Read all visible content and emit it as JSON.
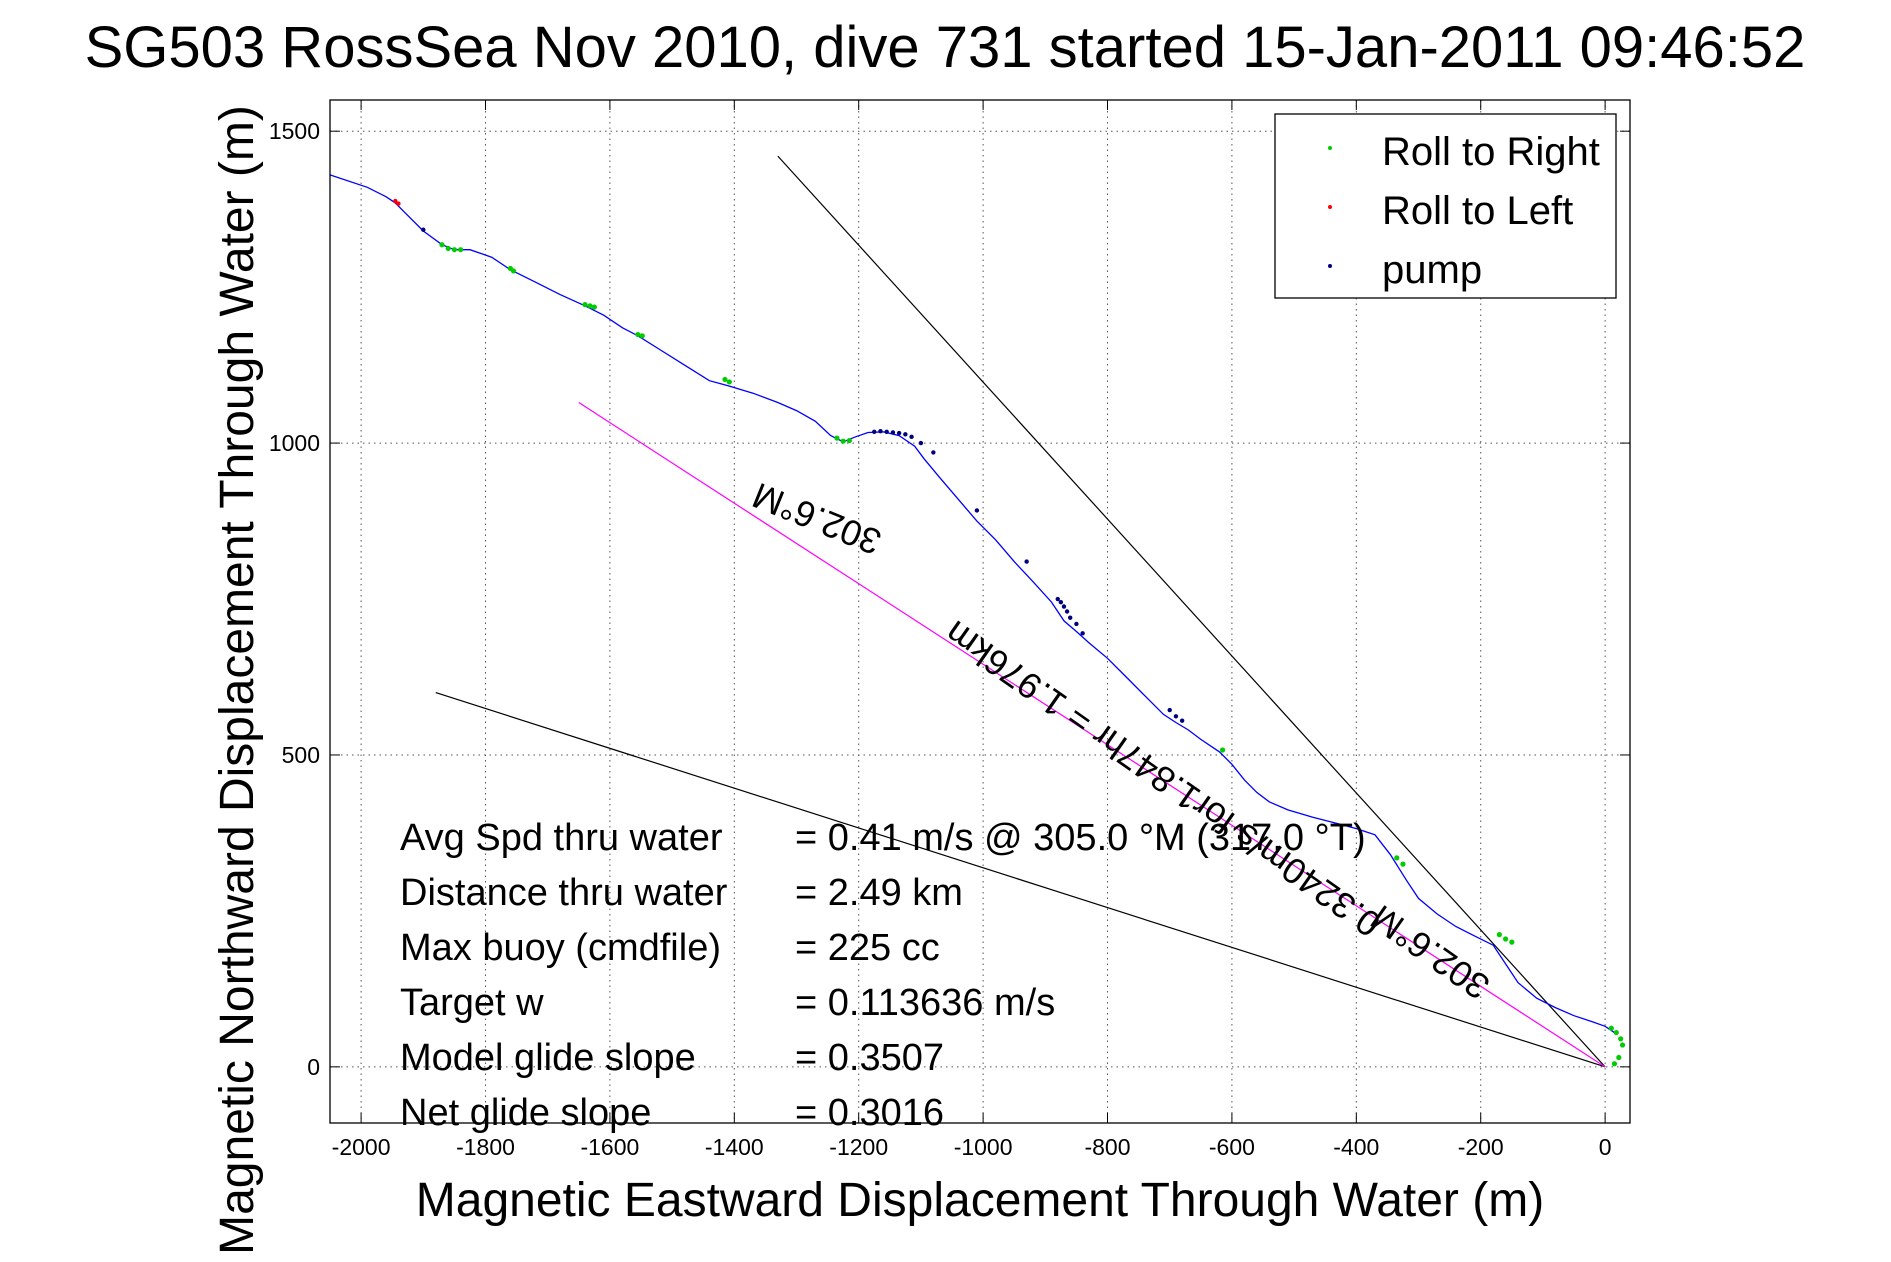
{
  "chart_data": {
    "type": "line",
    "title": "SG503 RossSea Nov 2010, dive 731 started 15-Jan-2011 09:46:52",
    "xlabel": "Magnetic Eastward Displacement Through Water (m)",
    "ylabel": "Magnetic Northward Displacement Through Water (m)",
    "xlim": [
      -2050,
      40
    ],
    "ylim": [
      -90,
      1550
    ],
    "xticks": [
      -2000,
      -1800,
      -1600,
      -1400,
      -1200,
      -1000,
      -800,
      -600,
      -400,
      -200,
      0
    ],
    "yticks": [
      0,
      500,
      1000,
      1500
    ],
    "grid": true,
    "legend_position": "top-right",
    "legend": [
      {
        "label": "Roll to Right",
        "color": "#00cc00"
      },
      {
        "label": "Roll to Left",
        "color": "#ff0000"
      },
      {
        "label": "pump",
        "color": "#000080"
      }
    ],
    "series": [
      {
        "color": "#0000ff",
        "x": [
          -2050,
          -1990,
          -1960,
          -1945,
          -1930,
          -1900,
          -1870,
          -1850,
          -1825,
          -1790,
          -1760,
          -1720,
          -1680,
          -1640,
          -1610,
          -1580,
          -1555,
          -1520,
          -1480,
          -1440,
          -1410,
          -1370,
          -1330,
          -1300,
          -1270,
          -1245,
          -1225,
          -1205,
          -1185,
          -1160,
          -1135,
          -1110,
          -1095,
          -1070,
          -1040,
          -1010,
          -980,
          -950,
          -920,
          -890,
          -870,
          -850,
          -830,
          -800,
          -770,
          -740,
          -710,
          -690,
          -670,
          -650,
          -620,
          -600,
          -580,
          -560,
          -540,
          -510,
          -470,
          -430,
          -400,
          -370,
          -345,
          -320,
          -300,
          -270,
          -240,
          -210,
          -180,
          -160,
          -140,
          -110,
          -80,
          -50,
          -20,
          0,
          15
        ],
        "y": [
          1430,
          1410,
          1395,
          1385,
          1370,
          1340,
          1318,
          1310,
          1310,
          1298,
          1278,
          1258,
          1238,
          1220,
          1205,
          1185,
          1172,
          1150,
          1125,
          1100,
          1092,
          1080,
          1065,
          1052,
          1035,
          1012,
          1002,
          1010,
          1017,
          1018,
          1012,
          995,
          975,
          945,
          910,
          875,
          845,
          810,
          778,
          745,
          715,
          698,
          680,
          655,
          625,
          595,
          565,
          552,
          540,
          525,
          505,
          485,
          460,
          440,
          425,
          412,
          400,
          390,
          382,
          372,
          340,
          300,
          270,
          245,
          225,
          210,
          195,
          165,
          135,
          110,
          95,
          82,
          72,
          65,
          55
        ]
      }
    ],
    "lines": [
      {
        "x": [
          -1330,
          0
        ],
        "y": [
          1460,
          0
        ],
        "color": "#000000"
      },
      {
        "x": [
          -1880,
          0
        ],
        "y": [
          600,
          0
        ],
        "color": "#000000"
      },
      {
        "x": [
          -1650,
          0
        ],
        "y": [
          1065,
          0
        ],
        "color": "#ff00ff"
      }
    ],
    "markers": {
      "roll_right": {
        "color": "#00cc00",
        "x": [
          -1870,
          -1860,
          -1850,
          -1840,
          -1760,
          -1755,
          -1640,
          -1632,
          -1625,
          -1555,
          -1548,
          -1415,
          -1408,
          -1235,
          -1225,
          -1215,
          -615,
          -335,
          -325,
          -170,
          -160,
          -150,
          10,
          18,
          25,
          28,
          22,
          15
        ],
        "y": [
          1318,
          1312,
          1310,
          1310,
          1280,
          1276,
          1222,
          1220,
          1218,
          1174,
          1172,
          1102,
          1098,
          1008,
          1003,
          1004,
          508,
          335,
          325,
          212,
          205,
          200,
          62,
          55,
          45,
          35,
          15,
          5
        ]
      },
      "roll_left": {
        "color": "#ff0000",
        "x": [
          -1945,
          -1940
        ],
        "y": [
          1388,
          1384
        ]
      },
      "pump": {
        "color": "#000080",
        "x": [
          -1900,
          -1175,
          -1165,
          -1155,
          -1145,
          -1135,
          -1125,
          -1115,
          -1100,
          -1080,
          -1010,
          -930,
          -880,
          -875,
          -870,
          -865,
          -860,
          -850,
          -840,
          -700,
          -690,
          -680
        ],
        "y": [
          1342,
          1018,
          1019,
          1018,
          1017,
          1016,
          1014,
          1010,
          1000,
          985,
          892,
          810,
          750,
          745,
          738,
          730,
          720,
          710,
          695,
          572,
          562,
          555
        ]
      }
    },
    "rotated_labels": [
      {
        "text": "302.6°M",
        "x": -1260,
        "y": 897,
        "angle": 22
      },
      {
        "text": "0.3240m/s for1.847hr = 1.976km",
        "x": -700,
        "y": 478,
        "angle": 35
      },
      {
        "text": "302.6°M",
        "x": -270,
        "y": 200,
        "angle": 35
      }
    ],
    "annotations": [
      {
        "label": "Avg Spd thru water",
        "value": "=  0.41 m/s @ 305.0 °M (317.0 °T)"
      },
      {
        "label": "Distance thru water",
        "value": "=  2.49 km"
      },
      {
        "label": "Max buoy (cmdfile)",
        "value": "= 225 cc"
      },
      {
        "label": "Target w",
        "value": "= 0.113636 m/s"
      },
      {
        "label": "Model glide slope",
        "value": "= 0.3507"
      },
      {
        "label": "Net glide slope",
        "value": "= 0.3016"
      }
    ]
  }
}
